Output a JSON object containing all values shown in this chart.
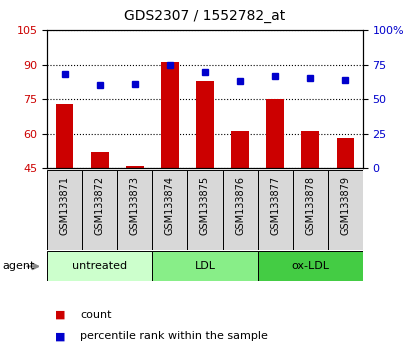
{
  "title": "GDS2307 / 1552782_at",
  "samples": [
    "GSM133871",
    "GSM133872",
    "GSM133873",
    "GSM133874",
    "GSM133875",
    "GSM133876",
    "GSM133877",
    "GSM133878",
    "GSM133879"
  ],
  "counts": [
    73,
    52,
    46,
    91,
    83,
    61,
    75,
    61,
    58
  ],
  "percentiles": [
    68,
    60,
    61,
    75,
    70,
    63,
    67,
    65,
    64
  ],
  "ylim_left": [
    45,
    105
  ],
  "ylim_right": [
    0,
    100
  ],
  "yticks_left": [
    45,
    60,
    75,
    90,
    105
  ],
  "yticks_right": [
    0,
    25,
    50,
    75,
    100
  ],
  "groups": [
    {
      "label": "untreated",
      "start": 0,
      "end": 3,
      "color": "#ccffcc"
    },
    {
      "label": "LDL",
      "start": 3,
      "end": 6,
      "color": "#88ee88"
    },
    {
      "label": "ox-LDL",
      "start": 6,
      "end": 9,
      "color": "#44cc44"
    }
  ],
  "bar_color": "#cc0000",
  "dot_color": "#0000cc",
  "bar_width": 0.5,
  "agent_label": "agent",
  "legend_count": "count",
  "legend_percentile": "percentile rank within the sample",
  "bg_color": "#ffffff",
  "tick_label_color_left": "#cc0000",
  "tick_label_color_right": "#0000cc",
  "sample_box_color": "#d8d8d8",
  "plot_bg_color": "#ffffff"
}
